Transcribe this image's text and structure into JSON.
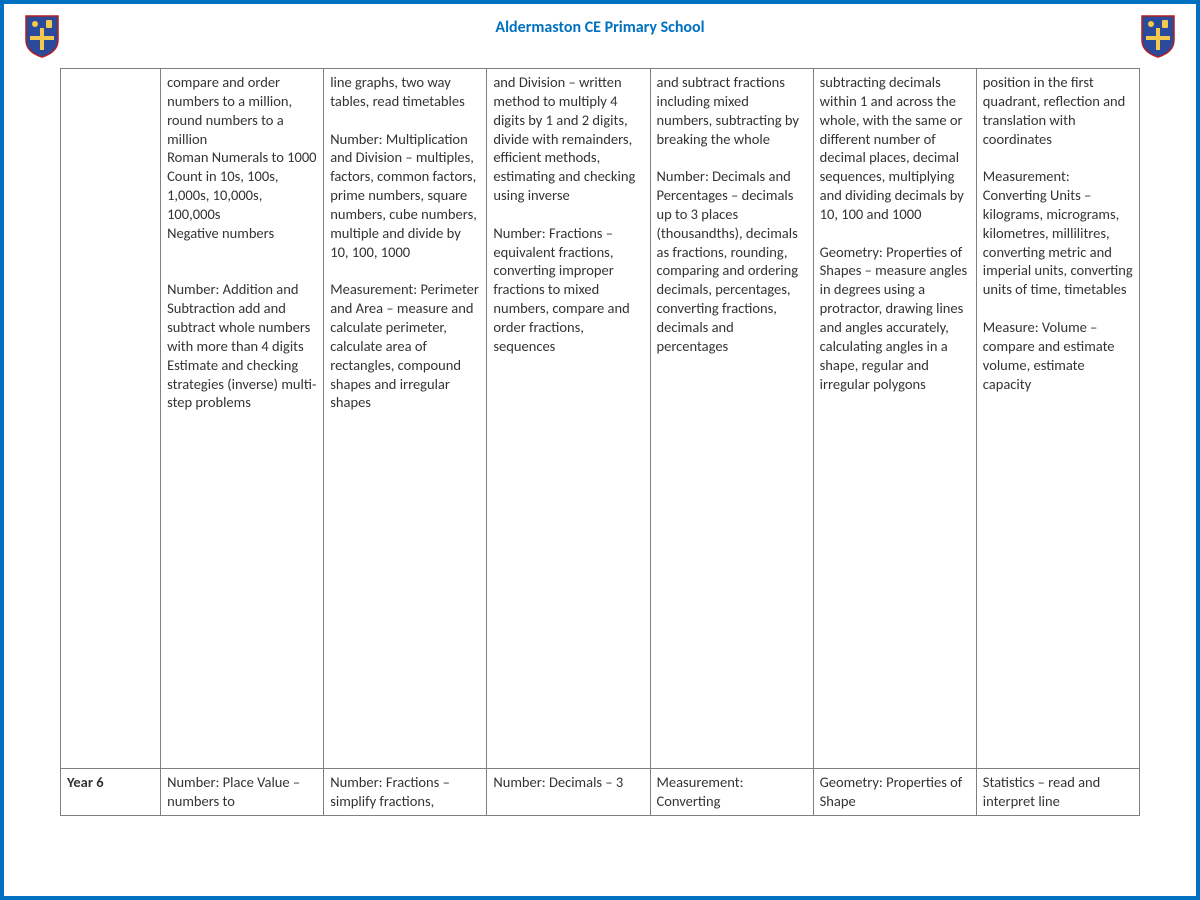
{
  "header": {
    "title": "Aldermaston CE Primary School"
  },
  "crest": {
    "shield_fill": "#2a4b9b",
    "shield_stroke": "#b01e23",
    "cross_fill": "#f2c94c",
    "top_left_fill": "#f2c94c",
    "top_right_fill": "#f2c94c"
  },
  "table": {
    "row_main": {
      "year": "",
      "cells": [
        "compare and order numbers to a million, round numbers to a million\nRoman Numerals to 1000\nCount in 10s, 100s, 1,000s, 10,000s, 100,000s\nNegative numbers\n\n\nNumber: Addition and Subtraction add and subtract whole numbers with more than 4 digits\nEstimate and checking strategies (inverse) multi-step problems",
        "line graphs, two way tables, read timetables\n\nNumber: Multiplication and Division – multiples, factors, common factors, prime numbers, square numbers, cube numbers, multiple and divide by 10, 100, 1000\n\nMeasurement: Perimeter and Area – measure and calculate perimeter, calculate area of rectangles, compound shapes and irregular shapes",
        "and Division – written method to multiply 4 digits by 1 and 2 digits, divide with remainders, efficient methods, estimating and checking using inverse\n\nNumber: Fractions – equivalent fractions, converting improper fractions to mixed numbers, compare and order fractions, sequences",
        "and subtract fractions including mixed numbers, subtracting by breaking the whole\n\nNumber: Decimals and Percentages – decimals up to 3 places (thousandths), decimals as fractions, rounding, comparing and ordering decimals, percentages, converting fractions, decimals and percentages",
        "subtracting decimals within 1 and across the whole, with the same or different number of decimal places, decimal sequences, multiplying and dividing decimals by 10, 100 and 1000\n\nGeometry: Properties of Shapes – measure angles in degrees using a protractor, drawing lines and angles accurately, calculating angles in a shape, regular and irregular polygons",
        "position in the first quadrant, reflection and translation with coordinates\n\nMeasurement: Converting Units – kilograms, micrograms, kilometres, millilitres, converting metric and imperial units, converting units of time, timetables\n\nMeasure: Volume – compare and estimate volume, estimate capacity"
      ]
    },
    "row_year6": {
      "year": "Year 6",
      "cells": [
        "Number: Place Value – numbers to",
        "Number: Fractions – simplify fractions,",
        "Number: Decimals – 3",
        "Measurement: Converting",
        "Geometry: Properties of Shape",
        "Statistics – read and interpret line"
      ]
    }
  }
}
